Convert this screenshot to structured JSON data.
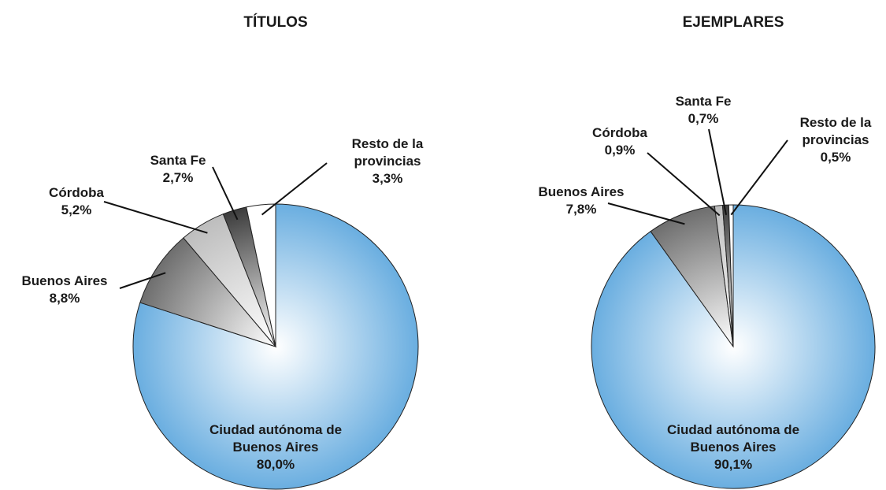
{
  "chart_data": [
    {
      "type": "pie",
      "title": "TÍTULOS",
      "categories": [
        "Ciudad autónoma de Buenos Aires",
        "Buenos Aires",
        "Córdoba",
        "Santa Fe",
        "Resto de la provincias"
      ],
      "values": [
        80.0,
        8.8,
        5.2,
        2.7,
        3.3
      ],
      "value_labels": [
        "80,0%",
        "8,8%",
        "5,2%",
        "2,7%",
        "3,3%"
      ],
      "colors": [
        "#6aaee0",
        "#6e6e6e",
        "#bdbdbd",
        "#3c3c3c",
        "#ffffff"
      ]
    },
    {
      "type": "pie",
      "title": "EJEMPLARES",
      "categories": [
        "Ciudad autónoma de Buenos Aires",
        "Buenos Aires",
        "Córdoba",
        "Santa Fe",
        "Resto de la provincias"
      ],
      "values": [
        90.1,
        7.8,
        0.9,
        0.7,
        0.5
      ],
      "value_labels": [
        "90,1%",
        "7,8%",
        "0,9%",
        "0,7%",
        "0,5%"
      ],
      "colors": [
        "#6aaee0",
        "#6e6e6e",
        "#bdbdbd",
        "#3c3c3c",
        "#ffffff"
      ]
    }
  ]
}
